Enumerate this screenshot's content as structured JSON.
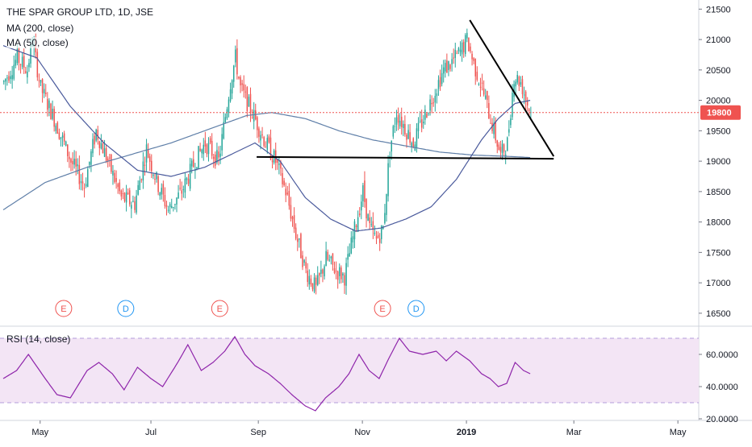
{
  "chart_data": {
    "type": "candlestick",
    "title": "THE SPAR GROUP LTD, 1D, JSE",
    "indicators": {
      "ma200_label": "MA (200, close)",
      "ma50_label": "MA (50, close)",
      "rsi_label": "RSI (14, close)"
    },
    "price_axis": {
      "ticks": [
        "21500",
        "21000",
        "20500",
        "20000",
        "19500",
        "19000",
        "18500",
        "18000",
        "17500",
        "17000",
        "16500"
      ],
      "range": [
        16300,
        21650
      ]
    },
    "last_price_label": "19800",
    "last_price": 19800,
    "rsi_axis": {
      "ticks": [
        "60.0000",
        "40.0000",
        "20.0000"
      ],
      "range": [
        20,
        75
      ],
      "band": [
        30,
        70
      ]
    },
    "time_axis": {
      "labels": [
        "May",
        "Jul",
        "Sep",
        "Nov",
        "2019",
        "Mar",
        "May"
      ]
    },
    "events": [
      {
        "letter": "E",
        "kind": "earnings"
      },
      {
        "letter": "D",
        "kind": "dividend"
      },
      {
        "letter": "E",
        "kind": "earnings"
      },
      {
        "letter": "E",
        "kind": "earnings"
      },
      {
        "letter": "D",
        "kind": "dividend"
      }
    ],
    "ohlc_keypoints": [
      [
        0,
        20300
      ],
      [
        8,
        20700
      ],
      [
        14,
        20500
      ],
      [
        17,
        21000
      ],
      [
        22,
        20200
      ],
      [
        30,
        19700
      ],
      [
        40,
        19000
      ],
      [
        48,
        18600
      ],
      [
        55,
        19500
      ],
      [
        62,
        19000
      ],
      [
        70,
        18400
      ],
      [
        78,
        18300
      ],
      [
        85,
        19200
      ],
      [
        92,
        18600
      ],
      [
        98,
        18200
      ],
      [
        106,
        18500
      ],
      [
        114,
        19000
      ],
      [
        120,
        19300
      ],
      [
        128,
        19000
      ],
      [
        135,
        20300
      ],
      [
        138,
        20700
      ],
      [
        141,
        20200
      ],
      [
        148,
        19800
      ],
      [
        156,
        19300
      ],
      [
        162,
        19000
      ],
      [
        168,
        18500
      ],
      [
        174,
        17800
      ],
      [
        180,
        17200
      ],
      [
        186,
        16900
      ],
      [
        192,
        17400
      ],
      [
        198,
        17200
      ],
      [
        203,
        17100
      ],
      [
        210,
        18000
      ],
      [
        214,
        18500
      ],
      [
        218,
        17900
      ],
      [
        222,
        17700
      ],
      [
        226,
        17900
      ],
      [
        230,
        19200
      ],
      [
        234,
        19800
      ],
      [
        238,
        19600
      ],
      [
        244,
        19300
      ],
      [
        250,
        19700
      ],
      [
        256,
        20100
      ],
      [
        262,
        20500
      ],
      [
        266,
        20600
      ],
      [
        272,
        20800
      ],
      [
        276,
        21000
      ],
      [
        280,
        20600
      ],
      [
        285,
        20200
      ],
      [
        290,
        19700
      ],
      [
        296,
        19100
      ],
      [
        300,
        19300
      ],
      [
        304,
        20400
      ],
      [
        308,
        20300
      ],
      [
        312,
        19950
      ],
      [
        314,
        19800
      ]
    ],
    "ma50_keypoints": [
      [
        0,
        20900
      ],
      [
        20,
        20700
      ],
      [
        40,
        19900
      ],
      [
        60,
        19300
      ],
      [
        80,
        18850
      ],
      [
        100,
        18750
      ],
      [
        120,
        18900
      ],
      [
        135,
        19100
      ],
      [
        150,
        19300
      ],
      [
        165,
        19000
      ],
      [
        180,
        18400
      ],
      [
        195,
        18050
      ],
      [
        210,
        17850
      ],
      [
        225,
        17900
      ],
      [
        240,
        18050
      ],
      [
        255,
        18250
      ],
      [
        270,
        18700
      ],
      [
        285,
        19350
      ],
      [
        295,
        19700
      ],
      [
        305,
        19950
      ],
      [
        314,
        20000
      ]
    ],
    "ma200_keypoints": [
      [
        0,
        18200
      ],
      [
        25,
        18650
      ],
      [
        50,
        18900
      ],
      [
        75,
        19100
      ],
      [
        100,
        19300
      ],
      [
        125,
        19550
      ],
      [
        145,
        19750
      ],
      [
        160,
        19800
      ],
      [
        180,
        19700
      ],
      [
        200,
        19500
      ],
      [
        220,
        19350
      ],
      [
        240,
        19250
      ],
      [
        260,
        19150
      ],
      [
        280,
        19100
      ],
      [
        300,
        19080
      ],
      [
        314,
        19060
      ]
    ],
    "rsi_keypoints": [
      [
        0,
        45
      ],
      [
        8,
        50
      ],
      [
        15,
        60
      ],
      [
        25,
        45
      ],
      [
        32,
        35
      ],
      [
        40,
        33
      ],
      [
        50,
        50
      ],
      [
        57,
        55
      ],
      [
        65,
        48
      ],
      [
        72,
        38
      ],
      [
        80,
        52
      ],
      [
        88,
        45
      ],
      [
        95,
        40
      ],
      [
        104,
        55
      ],
      [
        110,
        66
      ],
      [
        118,
        50
      ],
      [
        125,
        55
      ],
      [
        132,
        62
      ],
      [
        138,
        71
      ],
      [
        144,
        60
      ],
      [
        150,
        53
      ],
      [
        158,
        48
      ],
      [
        165,
        42
      ],
      [
        172,
        35
      ],
      [
        180,
        28
      ],
      [
        186,
        25
      ],
      [
        192,
        33
      ],
      [
        200,
        40
      ],
      [
        206,
        48
      ],
      [
        212,
        60
      ],
      [
        218,
        50
      ],
      [
        224,
        45
      ],
      [
        230,
        58
      ],
      [
        236,
        70
      ],
      [
        242,
        62
      ],
      [
        250,
        60
      ],
      [
        258,
        62
      ],
      [
        264,
        56
      ],
      [
        270,
        62
      ],
      [
        278,
        56
      ],
      [
        285,
        48
      ],
      [
        290,
        45
      ],
      [
        295,
        40
      ],
      [
        300,
        42
      ],
      [
        305,
        55
      ],
      [
        310,
        50
      ],
      [
        314,
        48
      ]
    ],
    "trendlines": [
      {
        "name": "descending-resistance",
        "from": [
          278,
          21320
        ],
        "to": [
          328,
          19080
        ]
      },
      {
        "name": "horizontal-support",
        "from": [
          151,
          19070
        ],
        "to": [
          328,
          19040
        ]
      }
    ],
    "colors": {
      "up": "#26a69a",
      "down": "#ef5350",
      "ma50": "#4a5a9c",
      "ma200": "#5f7fa8",
      "rsi": "#8e24aa",
      "rsi_band": "#f3e5f5",
      "trendline": "#000000",
      "price_line": "#ef5350",
      "price_tag": "#ef5350",
      "event_e": "#ef5350",
      "event_d": "#2196f3"
    }
  }
}
